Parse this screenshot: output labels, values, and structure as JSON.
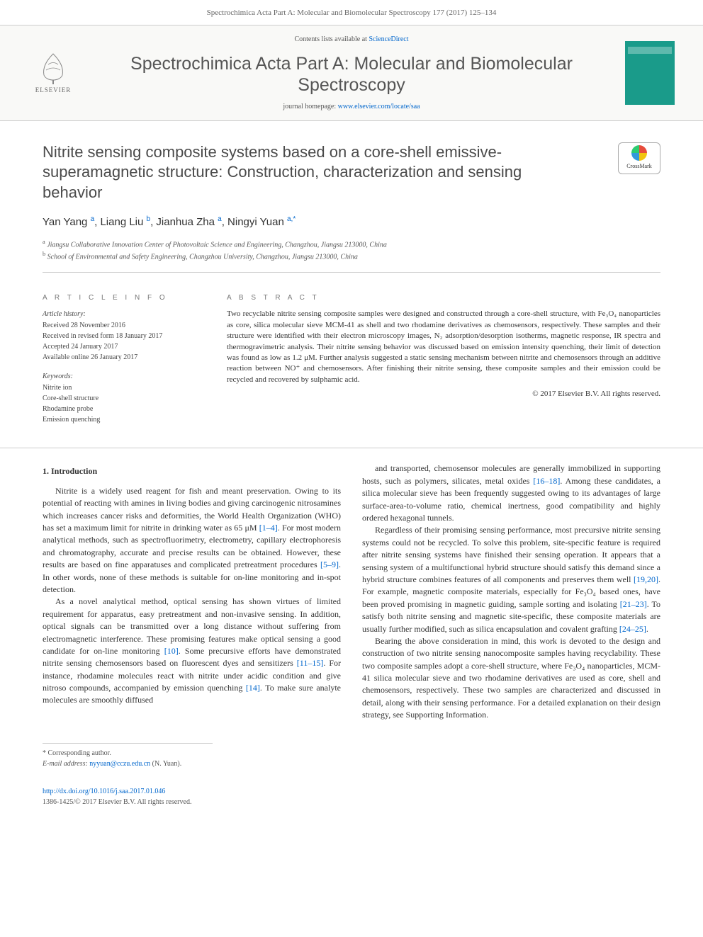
{
  "header": {
    "running_head": "Spectrochimica Acta Part A: Molecular and Biomolecular Spectroscopy 177 (2017) 125–134"
  },
  "banner": {
    "contents_prefix": "Contents lists available at ",
    "contents_link": "ScienceDirect",
    "journal_name": "Spectrochimica Acta Part A: Molecular and Biomolecular Spectroscopy",
    "homepage_prefix": "journal homepage: ",
    "homepage_url": "www.elsevier.com/locate/saa",
    "elsevier_label": "ELSEVIER"
  },
  "article": {
    "title": "Nitrite sensing composite systems based on a core-shell emissive-superamagnetic structure: Construction, characterization and sensing behavior",
    "crossmark_label": "CrossMark",
    "authors_html": "Yan Yang <sup>a</sup>, Liang Liu <sup>b</sup>, Jianhua Zha <sup>a</sup>, Ningyi Yuan <sup>a,*</sup>",
    "affiliations": [
      {
        "sup": "a",
        "text": "Jiangsu Collaborative Innovation Center of Photovoltaic Science and Engineering, Changzhou, Jiangsu 213000, China"
      },
      {
        "sup": "b",
        "text": "School of Environmental and Safety Engineering, Changzhou University, Changzhou, Jiangsu 213000, China"
      }
    ]
  },
  "info": {
    "heading": "A R T I C L E   I N F O",
    "history_label": "Article history:",
    "history": [
      "Received 28 November 2016",
      "Received in revised form 18 January 2017",
      "Accepted 24 January 2017",
      "Available online 26 January 2017"
    ],
    "keywords_label": "Keywords:",
    "keywords": [
      "Nitrite ion",
      "Core-shell structure",
      "Rhodamine probe",
      "Emission quenching"
    ]
  },
  "abstract": {
    "heading": "A B S T R A C T",
    "text": "Two recyclable nitrite sensing composite samples were designed and constructed through a core-shell structure, with Fe₃O₄ nanoparticles as core, silica molecular sieve MCM-41 as shell and two rhodamine derivatives as chemosensors, respectively. These samples and their structure were identified with their electron microscopy images, N₂ adsorption/desorption isotherms, magnetic response, IR spectra and thermogravimetric analysis. Their nitrite sensing behavior was discussed based on emission intensity quenching, their limit of detection was found as low as 1.2 μM. Further analysis suggested a static sensing mechanism between nitrite and chemosensors through an additive reaction between NO⁺ and chemosensors. After finishing their nitrite sensing, these composite samples and their emission could be recycled and recovered by sulphamic acid.",
    "copyright": "© 2017 Elsevier B.V. All rights reserved."
  },
  "body": {
    "section_heading": "1. Introduction",
    "paragraphs": [
      "Nitrite is a widely used reagent for fish and meant preservation. Owing to its potential of reacting with amines in living bodies and giving carcinogenic nitrosamines which increases cancer risks and deformities, the World Health Organization (WHO) has set a maximum limit for nitrite in drinking water as 65 μM <span class=\"ref-link\">[1–4]</span>. For most modern analytical methods, such as spectrofluorimetry, electrometry, capillary electrophoresis and chromatography, accurate and precise results can be obtained. However, these results are based on fine apparatuses and complicated pretreatment procedures <span class=\"ref-link\">[5–9]</span>. In other words, none of these methods is suitable for on-line monitoring and in-spot detection.",
      "As a novel analytical method, optical sensing has shown virtues of limited requirement for apparatus, easy pretreatment and non-invasive sensing. In addition, optical signals can be transmitted over a long distance without suffering from electromagnetic interference. These promising features make optical sensing a good candidate for on-line monitoring <span class=\"ref-link\">[10]</span>. Some precursive efforts have demonstrated nitrite sensing chemosensors based on fluorescent dyes and sensitizers <span class=\"ref-link\">[11–15]</span>. For instance, rhodamine molecules react with nitrite under acidic condition and give nitroso compounds, accompanied by emission quenching <span class=\"ref-link\">[14]</span>. To make sure analyte molecules are smoothly diffused",
      "and transported, chemosensor molecules are generally immobilized in supporting hosts, such as polymers, silicates, metal oxides <span class=\"ref-link\">[16–18]</span>. Among these candidates, a silica molecular sieve has been frequently suggested owing to its advantages of large surface-area-to-volume ratio, chemical inertness, good compatibility and highly ordered hexagonal tunnels.",
      "Regardless of their promising sensing performance, most precursive nitrite sensing systems could not be recycled. To solve this problem, site-specific feature is required after nitrite sensing systems have finished their sensing operation. It appears that a sensing system of a multifunctional hybrid structure should satisfy this demand since a hybrid structure combines features of all components and preserves them well <span class=\"ref-link\">[19,20]</span>. For example, magnetic composite materials, especially for Fe₃O₄ based ones, have been proved promising in magnetic guiding, sample sorting and isolating <span class=\"ref-link\">[21–23]</span>. To satisfy both nitrite sensing and magnetic site-specific, these composite materials are usually further modified, such as silica encapsulation and covalent grafting <span class=\"ref-link\">[24–25]</span>.",
      "Bearing the above consideration in mind, this work is devoted to the design and construction of two nitrite sensing nanocomposite samples having recyclability. These two composite samples adopt a core-shell structure, where Fe₃O₄ nanoparticles, MCM-41 silica molecular sieve and two rhodamine derivatives are used as core, shell and chemosensors, respectively. These two samples are characterized and discussed in detail, along with their sensing performance. For a detailed explanation on their design strategy, see Supporting Information."
    ]
  },
  "footer": {
    "corr_label": "* Corresponding author.",
    "email_label": "E-mail address:",
    "email": "nyyuan@cczu.edu.cn",
    "email_name": "(N. Yuan).",
    "doi": "http://dx.doi.org/10.1016/j.saa.2017.01.046",
    "issn_line": "1386-1425/© 2017 Elsevier B.V. All rights reserved."
  },
  "colors": {
    "link": "#0066cc",
    "text": "#333333",
    "muted": "#666666",
    "border": "#cccccc",
    "cover": "#1a9b8a"
  }
}
